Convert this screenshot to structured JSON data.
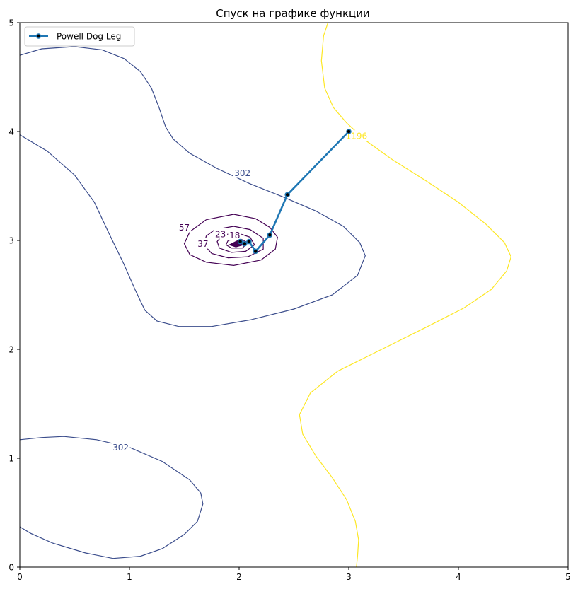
{
  "chart_data": {
    "type": "line",
    "title": "Спуск на графике функции",
    "xlabel": "",
    "ylabel": "",
    "xlim": [
      0,
      5
    ],
    "ylim": [
      0,
      5
    ],
    "x_ticks": [
      "0",
      "1",
      "2",
      "3",
      "4",
      "5"
    ],
    "y_ticks": [
      "0",
      "1",
      "2",
      "3",
      "4",
      "5"
    ],
    "grid": false,
    "legend": {
      "position": "top-left",
      "entries": [
        "Powell Dog Leg"
      ]
    },
    "series": [
      {
        "name": "Powell Dog Leg",
        "color": "#1f77b4",
        "marker_color": "#000000",
        "x": [
          3.0,
          2.44,
          2.28,
          2.15,
          2.09,
          2.05,
          2.01
        ],
        "y": [
          4.0,
          3.42,
          3.05,
          2.9,
          2.99,
          2.97,
          2.99
        ]
      }
    ],
    "contours": [
      {
        "label": "302",
        "color": "#3b4d8c",
        "lines": [
          [
            [
              0.0,
              4.7
            ],
            [
              0.2,
              4.76
            ],
            [
              0.5,
              4.78
            ],
            [
              0.75,
              4.75
            ],
            [
              0.95,
              4.67
            ],
            [
              1.1,
              4.55
            ],
            [
              1.2,
              4.4
            ],
            [
              1.27,
              4.22
            ],
            [
              1.33,
              4.04
            ],
            [
              1.4,
              3.93
            ],
            [
              1.55,
              3.8
            ],
            [
              1.8,
              3.66
            ],
            [
              2.1,
              3.52
            ],
            [
              2.4,
              3.4
            ],
            [
              2.7,
              3.27
            ],
            [
              2.95,
              3.13
            ],
            [
              3.1,
              2.98
            ],
            [
              3.15,
              2.86
            ],
            [
              3.08,
              2.68
            ],
            [
              2.85,
              2.5
            ],
            [
              2.5,
              2.37
            ],
            [
              2.1,
              2.27
            ],
            [
              1.75,
              2.21
            ],
            [
              1.45,
              2.21
            ],
            [
              1.25,
              2.26
            ],
            [
              1.14,
              2.36
            ],
            [
              1.05,
              2.55
            ],
            [
              0.95,
              2.78
            ],
            [
              0.82,
              3.05
            ],
            [
              0.68,
              3.35
            ],
            [
              0.5,
              3.6
            ],
            [
              0.25,
              3.82
            ],
            [
              0.0,
              3.97
            ]
          ],
          [
            [
              0.0,
              1.17
            ],
            [
              0.2,
              1.19
            ],
            [
              0.4,
              1.2
            ],
            [
              0.7,
              1.17
            ],
            [
              1.0,
              1.1
            ],
            [
              1.3,
              0.97
            ],
            [
              1.55,
              0.8
            ],
            [
              1.65,
              0.68
            ],
            [
              1.67,
              0.58
            ],
            [
              1.62,
              0.42
            ],
            [
              1.5,
              0.3
            ],
            [
              1.3,
              0.17
            ],
            [
              1.1,
              0.1
            ],
            [
              0.85,
              0.08
            ],
            [
              0.6,
              0.13
            ],
            [
              0.3,
              0.22
            ],
            [
              0.1,
              0.31
            ],
            [
              0.0,
              0.37
            ]
          ]
        ],
        "label_positions": [
          [
            2.03,
            3.62
          ],
          [
            0.92,
            1.1
          ]
        ]
      },
      {
        "label": "1196",
        "color": "#fde725",
        "lines": [
          [
            [
              2.81,
              5.0
            ],
            [
              2.77,
              4.88
            ],
            [
              2.75,
              4.65
            ],
            [
              2.78,
              4.4
            ],
            [
              2.86,
              4.22
            ],
            [
              2.98,
              4.08
            ],
            [
              3.15,
              3.92
            ],
            [
              3.4,
              3.74
            ],
            [
              3.7,
              3.55
            ],
            [
              4.0,
              3.35
            ],
            [
              4.25,
              3.15
            ],
            [
              4.42,
              2.98
            ],
            [
              4.48,
              2.85
            ],
            [
              4.44,
              2.72
            ],
            [
              4.3,
              2.55
            ],
            [
              4.05,
              2.38
            ],
            [
              3.7,
              2.2
            ],
            [
              3.3,
              2.0
            ],
            [
              2.9,
              1.8
            ],
            [
              2.65,
              1.6
            ],
            [
              2.55,
              1.4
            ],
            [
              2.58,
              1.22
            ],
            [
              2.7,
              1.02
            ],
            [
              2.85,
              0.82
            ],
            [
              2.98,
              0.62
            ],
            [
              3.06,
              0.42
            ],
            [
              3.09,
              0.25
            ],
            [
              3.08,
              0.1
            ],
            [
              3.07,
              0.0
            ]
          ]
        ],
        "label_positions": [
          [
            3.07,
            3.96
          ]
        ]
      },
      {
        "label": "57",
        "color": "#440154",
        "lines": [
          [
            [
              1.7,
              3.19
            ],
            [
              1.95,
              3.24
            ],
            [
              2.15,
              3.2
            ],
            [
              2.28,
              3.12
            ],
            [
              2.35,
              3.03
            ],
            [
              2.33,
              2.92
            ],
            [
              2.2,
              2.82
            ],
            [
              1.95,
              2.77
            ],
            [
              1.7,
              2.8
            ],
            [
              1.55,
              2.87
            ],
            [
              1.5,
              2.97
            ],
            [
              1.55,
              3.08
            ],
            [
              1.7,
              3.19
            ]
          ]
        ],
        "label_positions": [
          [
            1.5,
            3.12
          ]
        ]
      },
      {
        "label": "37",
        "color": "#440154",
        "lines": [
          [
            [
              1.78,
              3.1
            ],
            [
              1.95,
              3.13
            ],
            [
              2.1,
              3.1
            ],
            [
              2.22,
              3.02
            ],
            [
              2.22,
              2.92
            ],
            [
              2.08,
              2.85
            ],
            [
              1.9,
              2.84
            ],
            [
              1.75,
              2.88
            ],
            [
              1.68,
              2.96
            ],
            [
              1.7,
              3.04
            ],
            [
              1.78,
              3.1
            ]
          ]
        ],
        "label_positions": [
          [
            1.67,
            2.97
          ]
        ]
      },
      {
        "label": "",
        "color": "#440154",
        "lines": [
          [
            [
              1.85,
              3.05
            ],
            [
              1.98,
              3.07
            ],
            [
              2.1,
              3.03
            ],
            [
              2.14,
              2.96
            ],
            [
              2.06,
              2.9
            ],
            [
              1.93,
              2.89
            ],
            [
              1.82,
              2.93
            ],
            [
              1.8,
              2.99
            ],
            [
              1.85,
              3.05
            ]
          ],
          [
            [
              1.9,
              3.0
            ],
            [
              2.0,
              3.02
            ],
            [
              2.08,
              2.98
            ],
            [
              2.03,
              2.93
            ],
            [
              1.93,
              2.93
            ],
            [
              1.88,
              2.96
            ],
            [
              1.9,
              3.0
            ]
          ]
        ],
        "label_positions": []
      },
      {
        "label": "23",
        "color": "#440154",
        "lines": [],
        "label_positions": [
          [
            1.83,
            3.06
          ]
        ]
      },
      {
        "label": "18",
        "color": "#440154",
        "lines": [],
        "label_positions": [
          [
            1.96,
            3.05
          ]
        ]
      }
    ],
    "filled_minimum": {
      "color": "#440154",
      "polygon": [
        [
          1.91,
          2.96
        ],
        [
          1.99,
          3.0
        ],
        [
          2.04,
          2.96
        ],
        [
          1.97,
          2.94
        ]
      ]
    }
  }
}
